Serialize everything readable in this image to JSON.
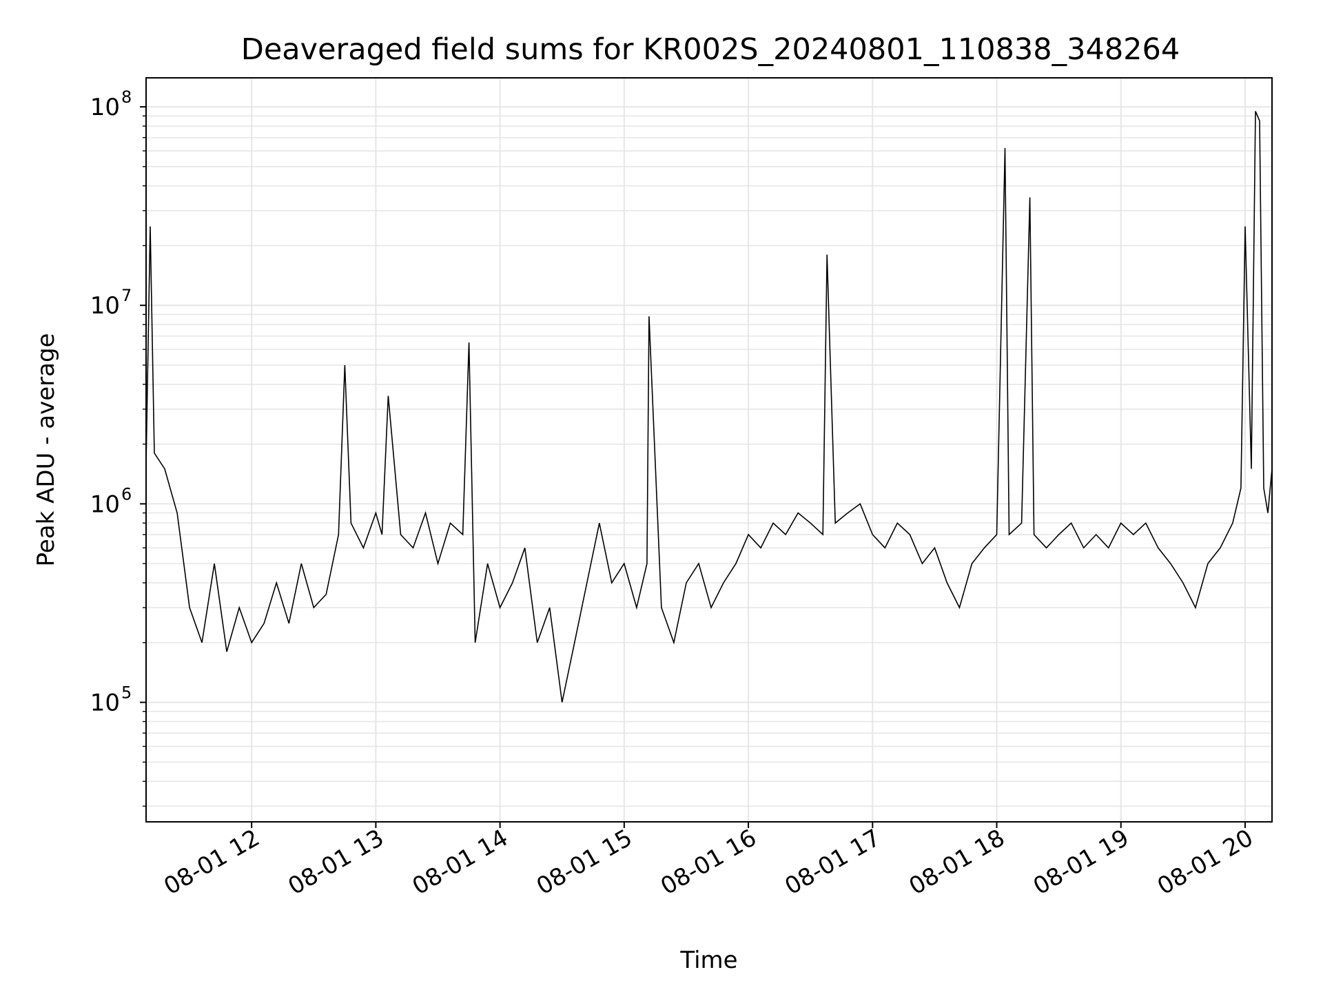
{
  "chart_data": {
    "type": "line",
    "title": "Deaveraged field sums for KR002S_20240801_110838_348264",
    "xlabel": "Time",
    "ylabel": "Peak ADU - average",
    "yscale": "log",
    "xlim": [
      "2024-08-01 11:09",
      "2024-08-01 20:13"
    ],
    "ylim": [
      25000,
      140000000
    ],
    "grid": true,
    "x_ticks": [
      "08-01 12",
      "08-01 13",
      "08-01 14",
      "08-01 15",
      "08-01 16",
      "08-01 17",
      "08-01 18",
      "08-01 19",
      "08-01 20"
    ],
    "y_ticks": [
      {
        "base": "10",
        "exp": "5"
      },
      {
        "base": "10",
        "exp": "6"
      },
      {
        "base": "10",
        "exp": "7"
      },
      {
        "base": "10",
        "exp": "8"
      }
    ],
    "series": [
      {
        "color": "#000000",
        "x": [
          "2024-08-01 11:09",
          "2024-08-01 11:11",
          "2024-08-01 11:13",
          "2024-08-01 11:18",
          "2024-08-01 11:24",
          "2024-08-01 11:30",
          "2024-08-01 11:36",
          "2024-08-01 11:42",
          "2024-08-01 11:48",
          "2024-08-01 11:54",
          "2024-08-01 12:00",
          "2024-08-01 12:06",
          "2024-08-01 12:12",
          "2024-08-01 12:18",
          "2024-08-01 12:24",
          "2024-08-01 12:30",
          "2024-08-01 12:36",
          "2024-08-01 12:42",
          "2024-08-01 12:45",
          "2024-08-01 12:48",
          "2024-08-01 12:54",
          "2024-08-01 13:00",
          "2024-08-01 13:03",
          "2024-08-01 13:06",
          "2024-08-01 13:12",
          "2024-08-01 13:18",
          "2024-08-01 13:24",
          "2024-08-01 13:30",
          "2024-08-01 13:36",
          "2024-08-01 13:42",
          "2024-08-01 13:45",
          "2024-08-01 13:48",
          "2024-08-01 13:54",
          "2024-08-01 14:00",
          "2024-08-01 14:06",
          "2024-08-01 14:12",
          "2024-08-01 14:18",
          "2024-08-01 14:24",
          "2024-08-01 14:30",
          "2024-08-01 14:36",
          "2024-08-01 14:42",
          "2024-08-01 14:48",
          "2024-08-01 14:54",
          "2024-08-01 15:00",
          "2024-08-01 15:06",
          "2024-08-01 15:11",
          "2024-08-01 15:12",
          "2024-08-01 15:18",
          "2024-08-01 15:24",
          "2024-08-01 15:30",
          "2024-08-01 15:36",
          "2024-08-01 15:42",
          "2024-08-01 15:48",
          "2024-08-01 15:54",
          "2024-08-01 16:00",
          "2024-08-01 16:06",
          "2024-08-01 16:12",
          "2024-08-01 16:18",
          "2024-08-01 16:24",
          "2024-08-01 16:30",
          "2024-08-01 16:36",
          "2024-08-01 16:38",
          "2024-08-01 16:42",
          "2024-08-01 16:48",
          "2024-08-01 16:54",
          "2024-08-01 17:00",
          "2024-08-01 17:06",
          "2024-08-01 17:12",
          "2024-08-01 17:18",
          "2024-08-01 17:24",
          "2024-08-01 17:30",
          "2024-08-01 17:36",
          "2024-08-01 17:42",
          "2024-08-01 17:48",
          "2024-08-01 17:54",
          "2024-08-01 18:00",
          "2024-08-01 18:04",
          "2024-08-01 18:06",
          "2024-08-01 18:12",
          "2024-08-01 18:16",
          "2024-08-01 18:18",
          "2024-08-01 18:24",
          "2024-08-01 18:30",
          "2024-08-01 18:36",
          "2024-08-01 18:42",
          "2024-08-01 18:48",
          "2024-08-01 18:54",
          "2024-08-01 19:00",
          "2024-08-01 19:06",
          "2024-08-01 19:12",
          "2024-08-01 19:18",
          "2024-08-01 19:24",
          "2024-08-01 19:30",
          "2024-08-01 19:36",
          "2024-08-01 19:42",
          "2024-08-01 19:48",
          "2024-08-01 19:54",
          "2024-08-01 19:58",
          "2024-08-01 20:00",
          "2024-08-01 20:03",
          "2024-08-01 20:05",
          "2024-08-01 20:07",
          "2024-08-01 20:09",
          "2024-08-01 20:11",
          "2024-08-01 20:13"
        ],
        "y": [
          1600000,
          25000000,
          1800000,
          1500000,
          900000,
          300000,
          200000,
          500000,
          180000,
          300000,
          200000,
          250000,
          400000,
          250000,
          500000,
          300000,
          350000,
          700000,
          5000000,
          800000,
          600000,
          900000,
          700000,
          3500000,
          700000,
          600000,
          900000,
          500000,
          800000,
          700000,
          6500000,
          200000,
          500000,
          300000,
          400000,
          600000,
          200000,
          300000,
          100000,
          200000,
          400000,
          800000,
          400000,
          500000,
          300000,
          500000,
          8800000,
          300000,
          200000,
          400000,
          500000,
          300000,
          400000,
          500000,
          700000,
          600000,
          800000,
          700000,
          900000,
          800000,
          700000,
          18000000,
          800000,
          900000,
          1000000,
          700000,
          600000,
          800000,
          700000,
          500000,
          600000,
          400000,
          300000,
          500000,
          600000,
          700000,
          62000000,
          700000,
          800000,
          35000000,
          700000,
          600000,
          700000,
          800000,
          600000,
          700000,
          600000,
          800000,
          700000,
          800000,
          600000,
          500000,
          400000,
          300000,
          500000,
          600000,
          800000,
          1200000,
          25000000,
          1500000,
          95000000,
          85000000,
          1200000,
          900000,
          1500000
        ]
      }
    ]
  }
}
